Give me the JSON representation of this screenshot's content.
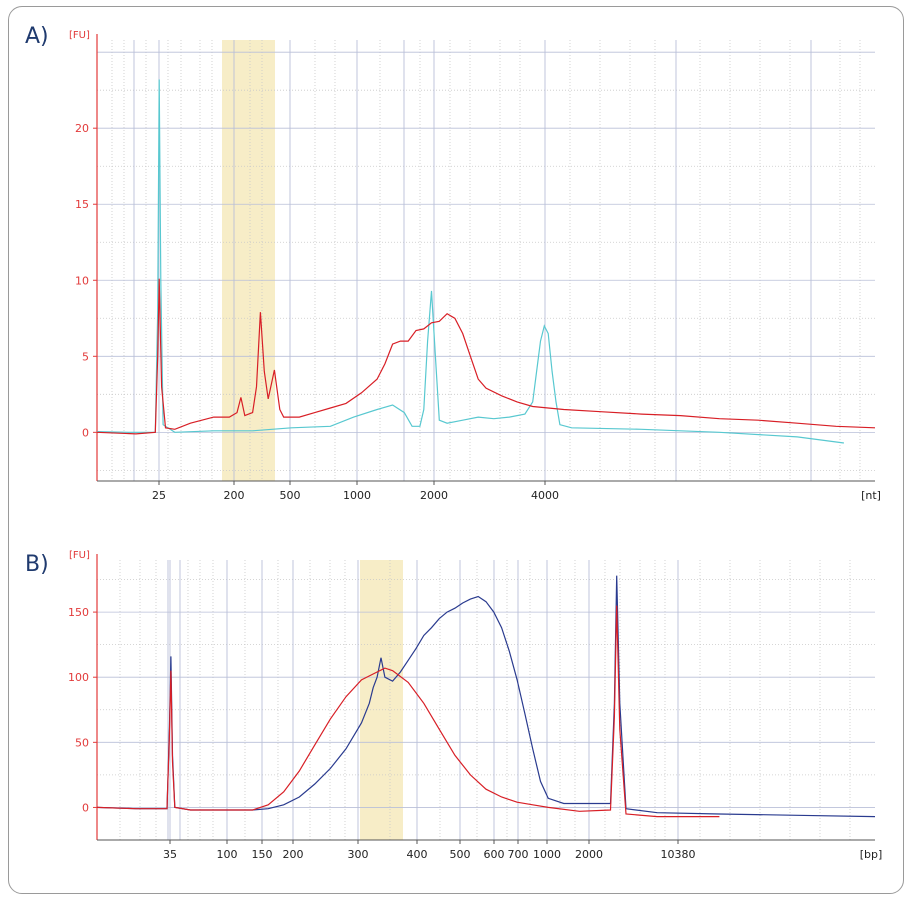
{
  "panels": {
    "a_label": "A)",
    "b_label": "B)"
  },
  "colors": {
    "axis": "#e23a3a",
    "grid": "#b9bfd8",
    "minor_grid": "#c8c8c8",
    "highlight": "#f7edc7",
    "red": "#d81f26",
    "cyan": "#58c8d0",
    "blue": "#2a3b8f"
  },
  "chart_data": [
    {
      "type": "line",
      "panel": "A",
      "ylabel": "[FU]",
      "xunit": "[nt]",
      "ylim": [
        -3.2,
        25.8
      ],
      "y_ticks": [
        0,
        5,
        10,
        15,
        20
      ],
      "x_tick_labels": [
        "25",
        "200",
        "500",
        "1000",
        "2000",
        "4000"
      ],
      "highlight_range": [
        "200",
        "500"
      ],
      "series": [
        {
          "color": "cyan",
          "points": [
            [
              0,
              0.05
            ],
            [
              0.04,
              0
            ],
            [
              0.075,
              0
            ],
            [
              0.078,
              8
            ],
            [
              0.08,
              23.2
            ],
            [
              0.082,
              10
            ],
            [
              0.085,
              0.5
            ],
            [
              0.1,
              0
            ],
            [
              0.15,
              0.1
            ],
            [
              0.2,
              0.1
            ],
            [
              0.25,
              0.3
            ],
            [
              0.3,
              0.4
            ],
            [
              0.33,
              1.0
            ],
            [
              0.36,
              1.5
            ],
            [
              0.38,
              1.8
            ],
            [
              0.395,
              1.3
            ],
            [
              0.405,
              0.4
            ],
            [
              0.415,
              0.4
            ],
            [
              0.42,
              1.5
            ],
            [
              0.425,
              6
            ],
            [
              0.43,
              9.3
            ],
            [
              0.435,
              5
            ],
            [
              0.44,
              0.8
            ],
            [
              0.45,
              0.6
            ],
            [
              0.47,
              0.8
            ],
            [
              0.49,
              1.0
            ],
            [
              0.51,
              0.9
            ],
            [
              0.53,
              1.0
            ],
            [
              0.55,
              1.2
            ],
            [
              0.56,
              2
            ],
            [
              0.565,
              4
            ],
            [
              0.57,
              6
            ],
            [
              0.575,
              7
            ],
            [
              0.58,
              6.5
            ],
            [
              0.585,
              4
            ],
            [
              0.59,
              2
            ],
            [
              0.595,
              0.5
            ],
            [
              0.61,
              0.3
            ],
            [
              0.7,
              0.2
            ],
            [
              0.8,
              0
            ],
            [
              0.9,
              -0.3
            ],
            [
              0.96,
              -0.7
            ]
          ]
        },
        {
          "color": "red",
          "points": [
            [
              0,
              0
            ],
            [
              0.05,
              -0.1
            ],
            [
              0.075,
              0
            ],
            [
              0.078,
              5
            ],
            [
              0.08,
              10.1
            ],
            [
              0.083,
              3
            ],
            [
              0.088,
              0.3
            ],
            [
              0.1,
              0.2
            ],
            [
              0.12,
              0.6
            ],
            [
              0.15,
              1
            ],
            [
              0.17,
              1.0
            ],
            [
              0.18,
              1.3
            ],
            [
              0.185,
              2.3
            ],
            [
              0.19,
              1.1
            ],
            [
              0.2,
              1.3
            ],
            [
              0.205,
              3
            ],
            [
              0.21,
              7.9
            ],
            [
              0.215,
              4
            ],
            [
              0.22,
              2.2
            ],
            [
              0.228,
              4.1
            ],
            [
              0.235,
              1.5
            ],
            [
              0.24,
              1.0
            ],
            [
              0.26,
              1.0
            ],
            [
              0.28,
              1.3
            ],
            [
              0.3,
              1.6
            ],
            [
              0.32,
              1.9
            ],
            [
              0.34,
              2.6
            ],
            [
              0.36,
              3.5
            ],
            [
              0.37,
              4.5
            ],
            [
              0.38,
              5.8
            ],
            [
              0.39,
              6.0
            ],
            [
              0.4,
              6.0
            ],
            [
              0.41,
              6.7
            ],
            [
              0.42,
              6.8
            ],
            [
              0.43,
              7.2
            ],
            [
              0.44,
              7.3
            ],
            [
              0.45,
              7.8
            ],
            [
              0.46,
              7.5
            ],
            [
              0.47,
              6.5
            ],
            [
              0.48,
              5.0
            ],
            [
              0.49,
              3.5
            ],
            [
              0.5,
              2.9
            ],
            [
              0.52,
              2.4
            ],
            [
              0.54,
              2.0
            ],
            [
              0.56,
              1.7
            ],
            [
              0.58,
              1.6
            ],
            [
              0.6,
              1.5
            ],
            [
              0.65,
              1.35
            ],
            [
              0.7,
              1.2
            ],
            [
              0.75,
              1.1
            ],
            [
              0.8,
              0.9
            ],
            [
              0.85,
              0.8
            ],
            [
              0.9,
              0.6
            ],
            [
              0.95,
              0.4
            ],
            [
              1,
              0.3
            ]
          ]
        }
      ]
    },
    {
      "type": "line",
      "panel": "B",
      "ylabel": "[FU]",
      "xunit": "[bp]",
      "ylim": [
        -25,
        190
      ],
      "y_ticks": [
        0,
        50,
        100,
        150
      ],
      "x_tick_labels": [
        "35",
        "100",
        "150",
        "200",
        "300",
        "400",
        "500",
        "600",
        "700",
        "1000",
        "2000",
        "10380"
      ],
      "highlight_range": [
        "300",
        "400"
      ],
      "series": [
        {
          "color": "blue",
          "points": [
            [
              0,
              0
            ],
            [
              0.05,
              -1
            ],
            [
              0.09,
              -1
            ],
            [
              0.093,
              60
            ],
            [
              0.095,
              116
            ],
            [
              0.097,
              40
            ],
            [
              0.1,
              0
            ],
            [
              0.12,
              -2
            ],
            [
              0.2,
              -2
            ],
            [
              0.22,
              -1
            ],
            [
              0.24,
              2
            ],
            [
              0.26,
              8
            ],
            [
              0.28,
              18
            ],
            [
              0.3,
              30
            ],
            [
              0.32,
              45
            ],
            [
              0.34,
              65
            ],
            [
              0.35,
              80
            ],
            [
              0.355,
              92
            ],
            [
              0.36,
              100
            ],
            [
              0.365,
              115
            ],
            [
              0.37,
              100
            ],
            [
              0.38,
              97
            ],
            [
              0.39,
              104
            ],
            [
              0.4,
              113
            ],
            [
              0.41,
              122
            ],
            [
              0.42,
              132
            ],
            [
              0.43,
              138
            ],
            [
              0.44,
              145
            ],
            [
              0.45,
              150
            ],
            [
              0.46,
              153
            ],
            [
              0.47,
              157
            ],
            [
              0.48,
              160
            ],
            [
              0.49,
              162
            ],
            [
              0.5,
              158
            ],
            [
              0.51,
              150
            ],
            [
              0.52,
              138
            ],
            [
              0.53,
              120
            ],
            [
              0.54,
              98
            ],
            [
              0.55,
              72
            ],
            [
              0.56,
              45
            ],
            [
              0.57,
              20
            ],
            [
              0.58,
              7
            ],
            [
              0.6,
              3
            ],
            [
              0.64,
              3
            ],
            [
              0.66,
              3
            ],
            [
              0.665,
              80
            ],
            [
              0.668,
              178
            ],
            [
              0.672,
              80
            ],
            [
              0.68,
              -1
            ],
            [
              0.72,
              -4
            ],
            [
              0.8,
              -5
            ],
            [
              0.9,
              -6
            ],
            [
              1,
              -7
            ]
          ]
        },
        {
          "color": "red",
          "points": [
            [
              0,
              0
            ],
            [
              0.05,
              -1
            ],
            [
              0.09,
              -1
            ],
            [
              0.093,
              55
            ],
            [
              0.095,
              105
            ],
            [
              0.097,
              35
            ],
            [
              0.1,
              0
            ],
            [
              0.12,
              -2
            ],
            [
              0.2,
              -2
            ],
            [
              0.22,
              2
            ],
            [
              0.24,
              12
            ],
            [
              0.26,
              28
            ],
            [
              0.28,
              48
            ],
            [
              0.3,
              68
            ],
            [
              0.32,
              85
            ],
            [
              0.34,
              98
            ],
            [
              0.36,
              104
            ],
            [
              0.37,
              107
            ],
            [
              0.38,
              105
            ],
            [
              0.4,
              96
            ],
            [
              0.42,
              80
            ],
            [
              0.44,
              60
            ],
            [
              0.46,
              40
            ],
            [
              0.48,
              25
            ],
            [
              0.5,
              14
            ],
            [
              0.52,
              8
            ],
            [
              0.54,
              4
            ],
            [
              0.56,
              2
            ],
            [
              0.58,
              0
            ],
            [
              0.62,
              -3
            ],
            [
              0.66,
              -2
            ],
            [
              0.665,
              70
            ],
            [
              0.668,
              155
            ],
            [
              0.672,
              60
            ],
            [
              0.68,
              -5
            ],
            [
              0.72,
              -7
            ],
            [
              0.8,
              -7
            ]
          ]
        }
      ]
    }
  ]
}
